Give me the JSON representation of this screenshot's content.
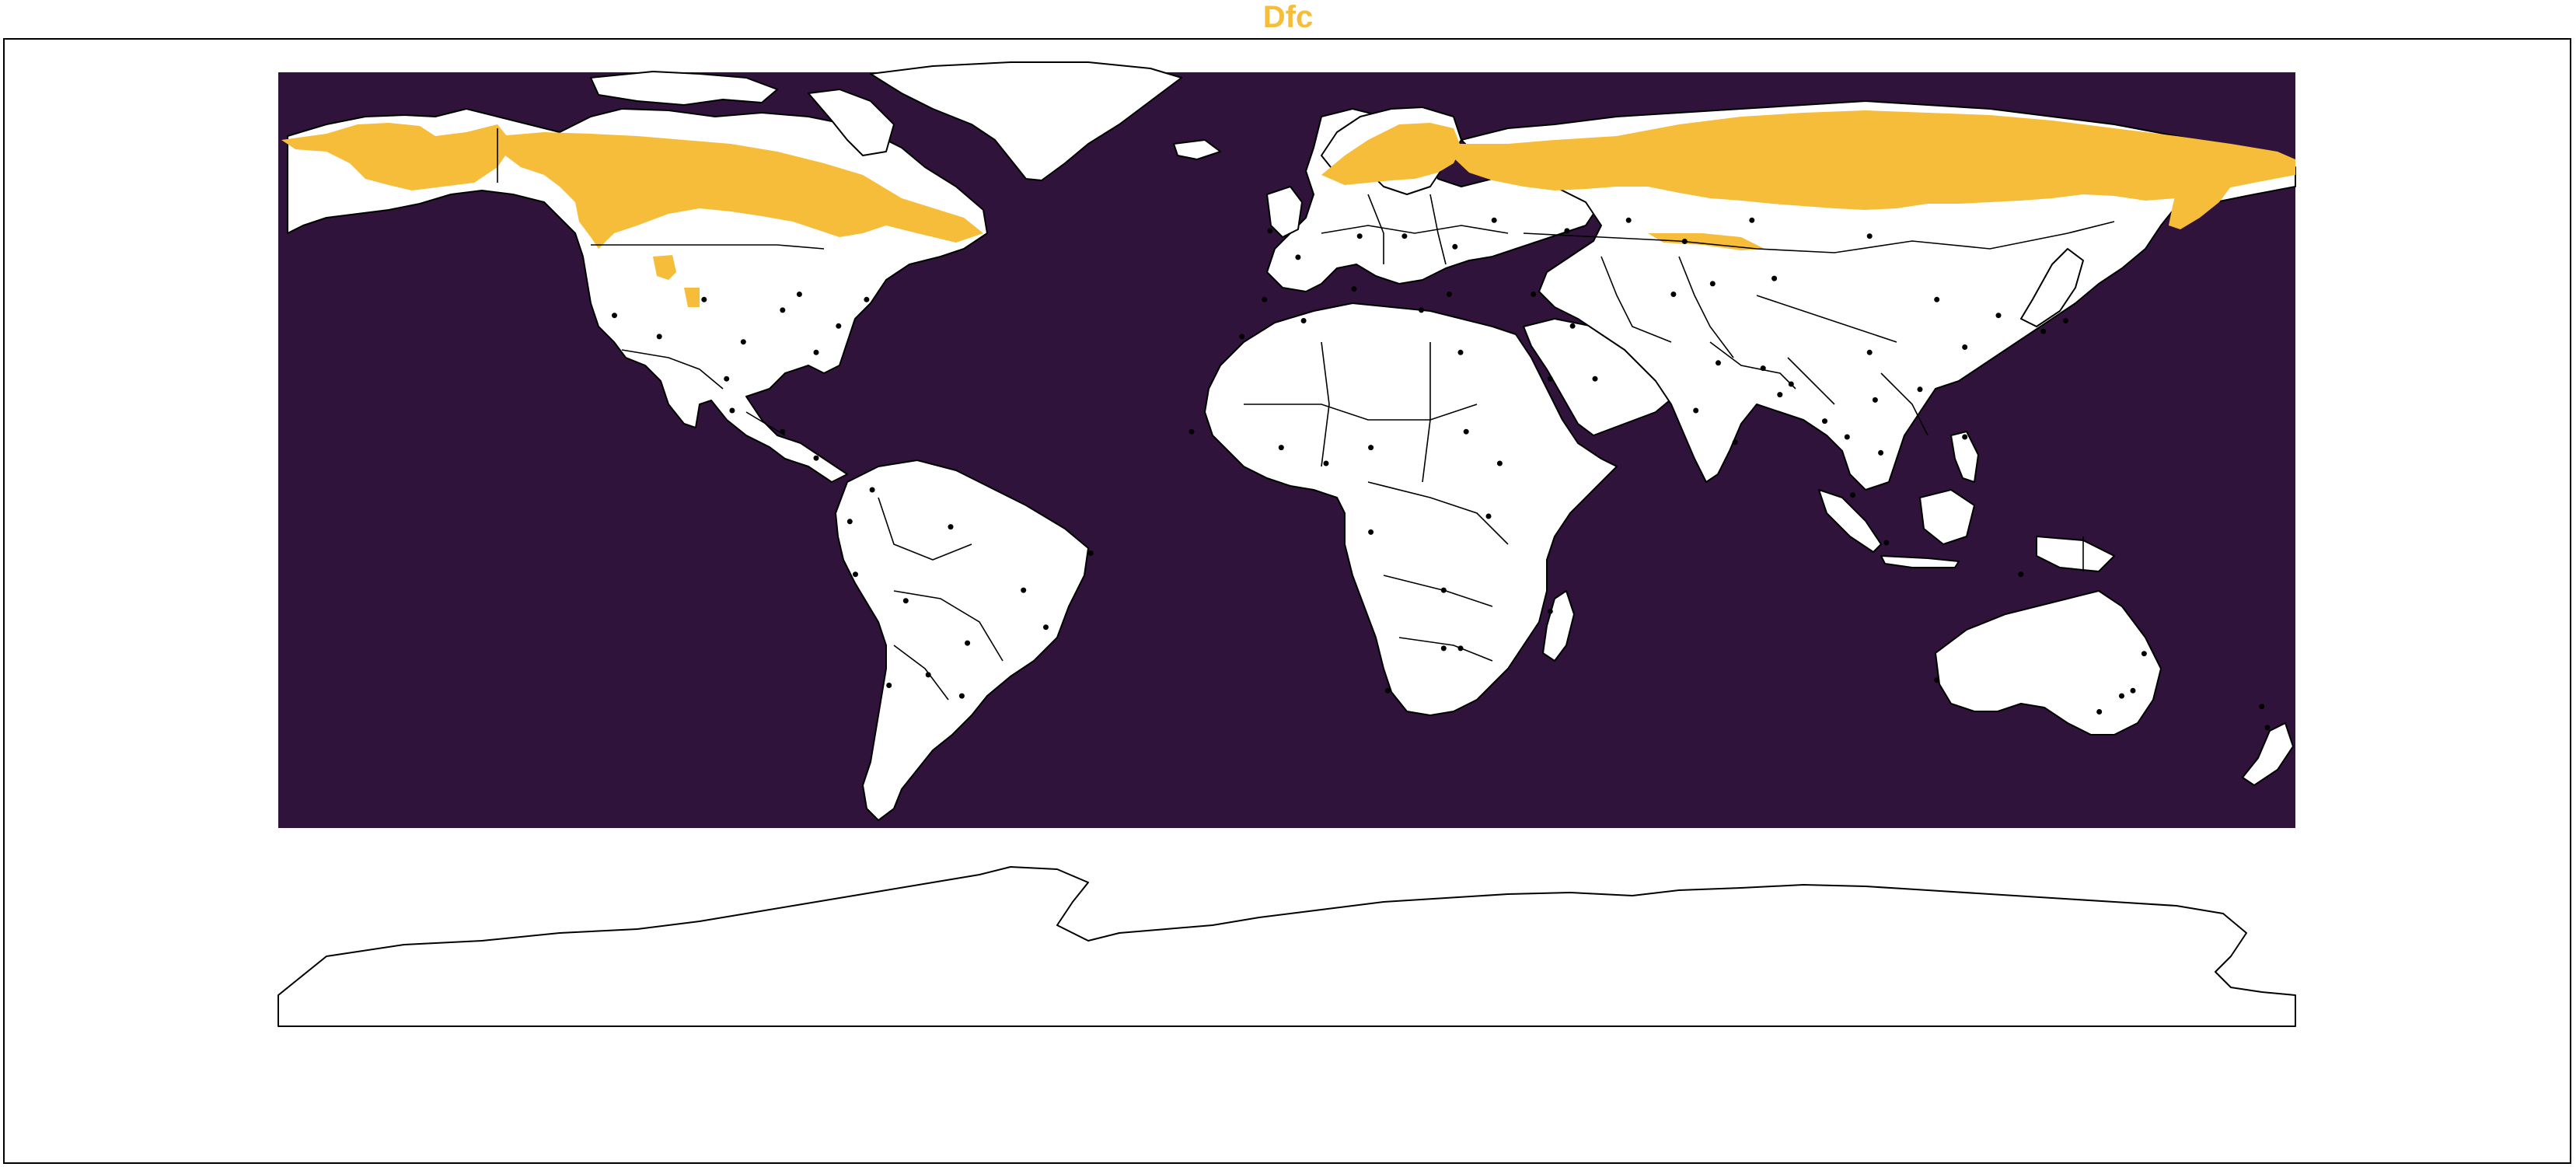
{
  "map": {
    "title": "Dfc",
    "title_color": "#f6bd3b",
    "background_color": "#30133a",
    "land_color": "#ffffff",
    "highlight_color": "#f6bd3b",
    "border_color": "#000000",
    "point_color": "#000000",
    "map_type": "world climate map, Köppen class highlight",
    "highlight_regions": [
      {
        "name": "alaska-yukon",
        "lon": -165,
        "lat": 65
      },
      {
        "name": "canada-boreal",
        "lon": -95,
        "lat": 56
      },
      {
        "name": "scandinavia",
        "lon": 20,
        "lat": 64
      },
      {
        "name": "russia-boreal",
        "lon": 90,
        "lat": 62
      },
      {
        "name": "kamchatka",
        "lon": 158,
        "lat": 58
      }
    ],
    "station_points": [
      {
        "lon": -104,
        "lat": 40
      },
      {
        "lon": -97,
        "lat": 32
      },
      {
        "lon": -87,
        "lat": 41
      },
      {
        "lon": -90,
        "lat": 38
      },
      {
        "lon": -80,
        "lat": 35
      },
      {
        "lon": -75,
        "lat": 40
      },
      {
        "lon": -84,
        "lat": 30
      },
      {
        "lon": -112,
        "lat": 33
      },
      {
        "lon": -120,
        "lat": 37
      },
      {
        "lon": -100,
        "lat": 25
      },
      {
        "lon": -99,
        "lat": 19
      },
      {
        "lon": -90,
        "lat": 15
      },
      {
        "lon": -84,
        "lat": 10
      },
      {
        "lon": -74,
        "lat": 4
      },
      {
        "lon": -78,
        "lat": -2
      },
      {
        "lon": -60,
        "lat": -3
      },
      {
        "lon": -47,
        "lat": -15
      },
      {
        "lon": -77,
        "lat": -12
      },
      {
        "lon": -68,
        "lat": -17
      },
      {
        "lon": -57,
        "lat": -25
      },
      {
        "lon": -64,
        "lat": -31
      },
      {
        "lon": -58,
        "lat": -35
      },
      {
        "lon": -71,
        "lat": -33
      },
      {
        "lon": -43,
        "lat": -22
      },
      {
        "lon": -35,
        "lat": -8
      },
      {
        "lon": -3,
        "lat": 53
      },
      {
        "lon": 2,
        "lat": 48
      },
      {
        "lon": 13,
        "lat": 52
      },
      {
        "lon": 21,
        "lat": 52
      },
      {
        "lon": 12,
        "lat": 42
      },
      {
        "lon": -4,
        "lat": 40
      },
      {
        "lon": 24,
        "lat": 38
      },
      {
        "lon": 29,
        "lat": 41
      },
      {
        "lon": 37,
        "lat": 55
      },
      {
        "lon": 30,
        "lat": 50
      },
      {
        "lon": 44,
        "lat": 41
      },
      {
        "lon": 51,
        "lat": 35
      },
      {
        "lon": 69,
        "lat": 41
      },
      {
        "lon": 76,
        "lat": 43
      },
      {
        "lon": 47,
        "lat": 25
      },
      {
        "lon": 55,
        "lat": 25
      },
      {
        "lon": 31,
        "lat": 30
      },
      {
        "lon": 3,
        "lat": 36
      },
      {
        "lon": -8,
        "lat": 33
      },
      {
        "lon": -17,
        "lat": 15
      },
      {
        "lon": -1,
        "lat": 12
      },
      {
        "lon": 7,
        "lat": 9
      },
      {
        "lon": 15,
        "lat": 12
      },
      {
        "lon": 32,
        "lat": 15
      },
      {
        "lon": 38,
        "lat": 9
      },
      {
        "lon": 36,
        "lat": -1
      },
      {
        "lon": 15,
        "lat": -4
      },
      {
        "lon": 28,
        "lat": -15
      },
      {
        "lon": 31,
        "lat": -26
      },
      {
        "lon": 18,
        "lat": -34
      },
      {
        "lon": 28,
        "lat": -26
      },
      {
        "lon": 47,
        "lat": -19
      },
      {
        "lon": 77,
        "lat": 28
      },
      {
        "lon": 73,
        "lat": 19
      },
      {
        "lon": 80,
        "lat": 13
      },
      {
        "lon": 88,
        "lat": 22
      },
      {
        "lon": 85,
        "lat": 27
      },
      {
        "lon": 90,
        "lat": 24
      },
      {
        "lon": 96,
        "lat": 17
      },
      {
        "lon": 100,
        "lat": 14
      },
      {
        "lon": 106,
        "lat": 11
      },
      {
        "lon": 105,
        "lat": 21
      },
      {
        "lon": 116,
        "lat": 40
      },
      {
        "lon": 121,
        "lat": 31
      },
      {
        "lon": 113,
        "lat": 23
      },
      {
        "lon": 104,
        "lat": 30
      },
      {
        "lon": 87,
        "lat": 44
      },
      {
        "lon": 127,
        "lat": 37
      },
      {
        "lon": 139,
        "lat": 36
      },
      {
        "lon": 135,
        "lat": 34
      },
      {
        "lon": 121,
        "lat": 14
      },
      {
        "lon": 107,
        "lat": -6
      },
      {
        "lon": 101,
        "lat": 3
      },
      {
        "lon": 116,
        "lat": -32
      },
      {
        "lon": 151,
        "lat": -34
      },
      {
        "lon": 145,
        "lat": -38
      },
      {
        "lon": 153,
        "lat": -27
      },
      {
        "lon": 131,
        "lat": -12
      },
      {
        "lon": 149,
        "lat": -35
      },
      {
        "lon": 174,
        "lat": -37
      },
      {
        "lon": 175,
        "lat": -41
      },
      {
        "lon": 61,
        "lat": 55
      },
      {
        "lon": 83,
        "lat": 55
      },
      {
        "lon": 104,
        "lat": 52
      },
      {
        "lon": 50,
        "lat": 53
      },
      {
        "lon": 71,
        "lat": 51
      }
    ],
    "note": ""
  }
}
